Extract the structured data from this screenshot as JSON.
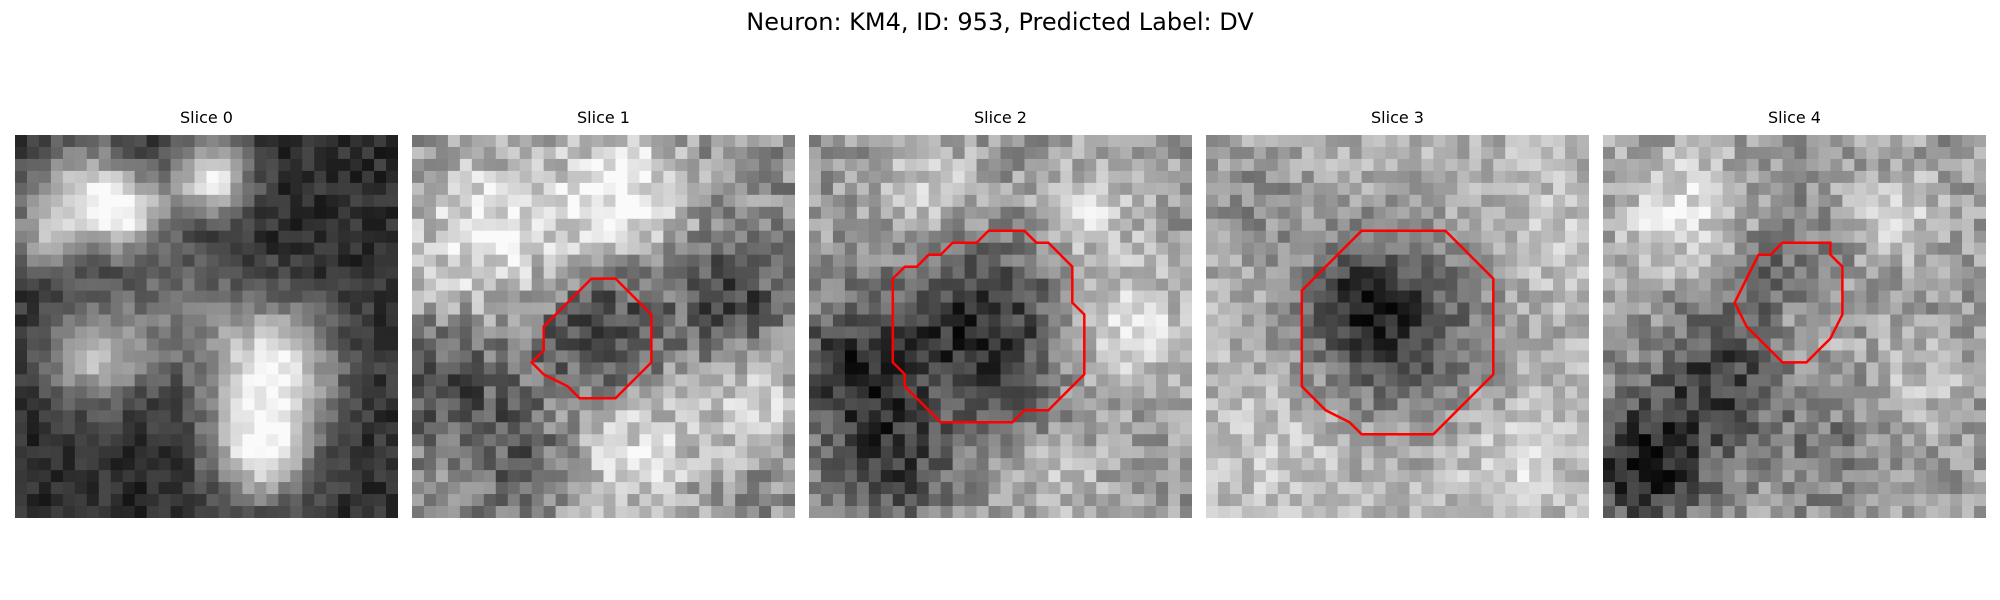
{
  "figure": {
    "title": "Neuron: KM4, ID: 953, Predicted Label: DV"
  },
  "slices": [
    {
      "label": "Slice 0",
      "has_outline": false
    },
    {
      "label": "Slice 1",
      "has_outline": true
    },
    {
      "label": "Slice 2",
      "has_outline": true
    },
    {
      "label": "Slice 3",
      "has_outline": true
    },
    {
      "label": "Slice 4",
      "has_outline": true
    }
  ],
  "colors": {
    "outline": "#ff0000",
    "colormap": "gray"
  }
}
